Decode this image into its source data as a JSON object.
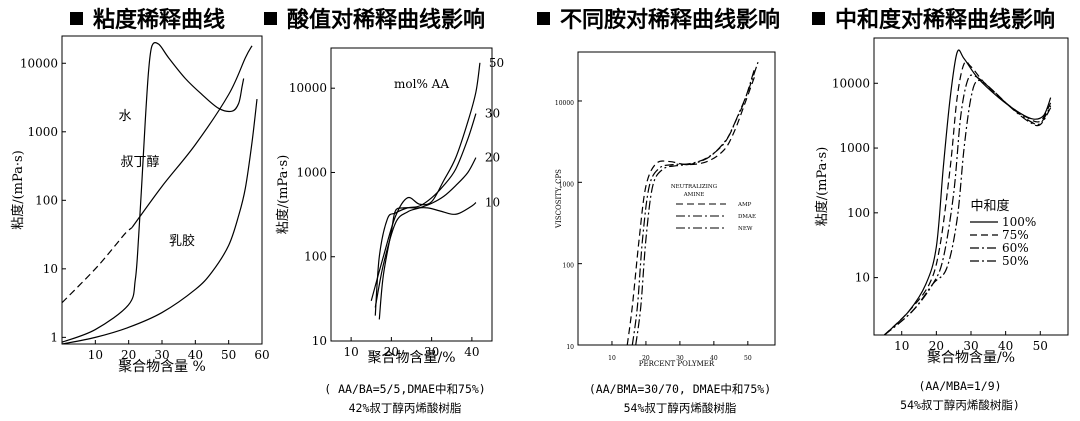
{
  "titles": [
    "粘度稀释曲线",
    "酸值对稀释曲线影响",
    "不同胺对稀释曲线影响",
    "中和度对稀释曲线影响"
  ],
  "captions": {
    "p2_line1": "( AA/BA=5/5,DMAE中和75%)",
    "p2_line2": "42%叔丁醇丙烯酸树脂",
    "p3_line1": "(AA/BMA=30/70, DMAE中和75%)",
    "p3_line2": "54%叔丁醇丙烯酸树脂",
    "p4_line1": "(AA/MBA=1/9)",
    "p4_line2": "54%叔丁醇丙烯酸树脂)"
  },
  "chart_data": [
    {
      "type": "line",
      "title": "粘度稀释曲线",
      "xlabel": "聚合物含量 %",
      "ylabel": "粘度/(mPa·s)",
      "xlim": [
        0,
        60
      ],
      "ylim": [
        0.8,
        25000
      ],
      "yscale": "log",
      "xticks": [
        10,
        20,
        30,
        40,
        50,
        60
      ],
      "yticks": [
        1,
        10,
        100,
        1000,
        10000
      ],
      "series": [
        {
          "name": "水",
          "dash": "solid",
          "points": [
            [
              0,
              0.85
            ],
            [
              10,
              1.3
            ],
            [
              20,
              3.0
            ],
            [
              22,
              7
            ],
            [
              23,
              30
            ],
            [
              24,
              200
            ],
            [
              25,
              1500
            ],
            [
              26,
              8000
            ],
            [
              27,
              18000
            ],
            [
              29,
              19000
            ],
            [
              32,
              12000
            ],
            [
              37,
              6000
            ],
            [
              42,
              3500
            ],
            [
              47,
              2200
            ],
            [
              51,
              2000
            ],
            [
              53,
              2600
            ],
            [
              54,
              4500
            ],
            [
              54.5,
              6000
            ]
          ]
        },
        {
          "name": "叔丁醇",
          "dash": "dashed",
          "points": [
            [
              0,
              3.2
            ],
            [
              10,
              10
            ],
            [
              16,
              22
            ],
            [
              19,
              33
            ],
            [
              21,
              40
            ]
          ]
        },
        {
          "name": "叔丁醇",
          "dash": "solid",
          "points": [
            [
              21,
              40
            ],
            [
              30,
              160
            ],
            [
              40,
              650
            ],
            [
              50,
              3500
            ],
            [
              55,
              12000
            ],
            [
              57,
              18000
            ]
          ]
        },
        {
          "name": "乳胶",
          "dash": "solid",
          "points": [
            [
              0,
              0.8
            ],
            [
              10,
              1.0
            ],
            [
              20,
              1.4
            ],
            [
              30,
              2.3
            ],
            [
              40,
              5
            ],
            [
              45,
              9
            ],
            [
              50,
              22
            ],
            [
              53,
              60
            ],
            [
              55,
              150
            ],
            [
              57,
              700
            ],
            [
              58.5,
              3000
            ]
          ]
        }
      ]
    },
    {
      "type": "line",
      "title": "酸值对稀释曲线影响",
      "xlabel": "聚合物含量/%",
      "ylabel": "粘度/(mPa·s)",
      "legend_title": "mol% AA",
      "xlim": [
        5,
        45
      ],
      "ylim": [
        10,
        30000
      ],
      "yscale": "log",
      "xticks": [
        10,
        20,
        30,
        40
      ],
      "yticks": [
        10,
        100,
        1000,
        10000
      ],
      "series": [
        {
          "name": "50",
          "points": [
            [
              15,
              30
            ],
            [
              18,
              100
            ],
            [
              21,
              300
            ],
            [
              24,
              500
            ],
            [
              27,
              420
            ],
            [
              30,
              450
            ],
            [
              33,
              800
            ],
            [
              36,
              1500
            ],
            [
              39,
              4000
            ],
            [
              41,
              9000
            ],
            [
              42,
              20000
            ]
          ]
        },
        {
          "name": "30",
          "points": [
            [
              16,
              20
            ],
            [
              17,
              100
            ],
            [
              19,
              280
            ],
            [
              21,
              330
            ],
            [
              24,
              380
            ],
            [
              27,
              400
            ],
            [
              30,
              500
            ],
            [
              33,
              700
            ],
            [
              36,
              1100
            ],
            [
              39,
              2500
            ],
            [
              41,
              5000
            ]
          ]
        },
        {
          "name": "20",
          "points": [
            [
              16,
              25
            ],
            [
              18,
              80
            ],
            [
              21,
              250
            ],
            [
              24,
              340
            ],
            [
              27,
              380
            ],
            [
              30,
              430
            ],
            [
              33,
              520
            ],
            [
              36,
              700
            ],
            [
              39,
              1000
            ],
            [
              41,
              1500
            ]
          ]
        },
        {
          "name": "10",
          "points": [
            [
              17,
              18
            ],
            [
              18,
              60
            ],
            [
              20,
              200
            ],
            [
              21,
              350
            ],
            [
              23,
              380
            ],
            [
              26,
              380
            ],
            [
              29,
              380
            ],
            [
              32,
              350
            ],
            [
              35,
              320
            ],
            [
              37,
              330
            ],
            [
              40,
              400
            ],
            [
              41,
              440
            ]
          ]
        }
      ]
    },
    {
      "type": "line",
      "title": "不同胺对稀释曲线影响",
      "xlabel": "PERCENT POLYMER",
      "ylabel": "VISCOSITY, CPS",
      "legend_title": "NEUTRALIZING AMINE",
      "xlim": [
        0,
        58
      ],
      "ylim": [
        10,
        40000
      ],
      "yscale": "log",
      "xticks": [
        10,
        20,
        30,
        40,
        50
      ],
      "yticks": [
        10,
        100,
        1000,
        10000
      ],
      "series": [
        {
          "name": "AMP",
          "dash": "dashed",
          "points": [
            [
              14.5,
              10
            ],
            [
              16,
              30
            ],
            [
              18,
              200
            ],
            [
              20,
              900
            ],
            [
              23,
              1700
            ],
            [
              27,
              1800
            ],
            [
              32,
              1650
            ],
            [
              38,
              1800
            ],
            [
              43,
              2500
            ],
            [
              46,
              4200
            ],
            [
              49,
              9000
            ],
            [
              52,
              20000
            ]
          ]
        },
        {
          "name": "DMAE",
          "dash": "dashdot",
          "points": [
            [
              16,
              10
            ],
            [
              17.5,
              30
            ],
            [
              19,
              200
            ],
            [
              21,
              900
            ],
            [
              24,
              1500
            ],
            [
              28,
              1650
            ],
            [
              33,
              1700
            ],
            [
              38,
              2000
            ],
            [
              43,
              3000
            ],
            [
              46,
              5200
            ],
            [
              49,
              10000
            ],
            [
              52,
              25000
            ]
          ]
        },
        {
          "name": "NEW",
          "dash": "dashdot",
          "points": [
            [
              17,
              10
            ],
            [
              18.5,
              30
            ],
            [
              20,
              200
            ],
            [
              22,
              900
            ],
            [
              25,
              1450
            ],
            [
              29,
              1600
            ],
            [
              34,
              1700
            ],
            [
              39,
              2100
            ],
            [
              44,
              3500
            ],
            [
              47,
              6500
            ],
            [
              50,
              13000
            ],
            [
              53,
              30000
            ]
          ]
        }
      ]
    },
    {
      "type": "line",
      "title": "中和度对稀释曲线影响",
      "xlabel": "聚合物含量/%",
      "ylabel": "粘度/(mPa·s)",
      "legend_title": "中和度",
      "xlim": [
        2,
        58
      ],
      "ylim": [
        1.3,
        50000
      ],
      "yscale": "log",
      "xticks": [
        10,
        20,
        30,
        40,
        50
      ],
      "yticks": [
        10,
        100,
        1000,
        10000
      ],
      "series": [
        {
          "name": "100%",
          "dash": "solid",
          "points": [
            [
              5,
              1.3
            ],
            [
              12,
              3
            ],
            [
              17,
              8
            ],
            [
              20,
              30
            ],
            [
              22,
              500
            ],
            [
              24,
              6000
            ],
            [
              26,
              30000
            ],
            [
              28,
              24000
            ],
            [
              32,
              12000
            ],
            [
              38,
              6000
            ],
            [
              44,
              3500
            ],
            [
              48,
              2800
            ],
            [
              51,
              3200
            ],
            [
              53,
              6000
            ]
          ]
        },
        {
          "name": "75%",
          "dash": "dashed",
          "points": [
            [
              5,
              1.3
            ],
            [
              12,
              3
            ],
            [
              18,
              8
            ],
            [
              21,
              30
            ],
            [
              24,
              500
            ],
            [
              26,
              6000
            ],
            [
              28,
              20000
            ],
            [
              30,
              18000
            ],
            [
              34,
              10000
            ],
            [
              40,
              5000
            ],
            [
              46,
              3000
            ],
            [
              50,
              2600
            ],
            [
              53,
              5000
            ]
          ]
        },
        {
          "name": "60%",
          "dash": "dashdot",
          "points": [
            [
              5,
              1.3
            ],
            [
              13,
              3
            ],
            [
              19,
              8
            ],
            [
              22,
              20
            ],
            [
              25,
              200
            ],
            [
              27,
              3000
            ],
            [
              29,
              11000
            ],
            [
              31,
              13000
            ],
            [
              35,
              9000
            ],
            [
              41,
              4500
            ],
            [
              47,
              2600
            ],
            [
              50,
              2400
            ],
            [
              53,
              4500
            ]
          ]
        },
        {
          "name": "50%",
          "dash": "dashdot",
          "points": [
            [
              5,
              1.3
            ],
            [
              13,
              3
            ],
            [
              19,
              8
            ],
            [
              23,
              14
            ],
            [
              26,
              80
            ],
            [
              28,
              1000
            ],
            [
              30,
              6000
            ],
            [
              32,
              11000
            ],
            [
              36,
              8000
            ],
            [
              42,
              4000
            ],
            [
              47,
              2500
            ],
            [
              50,
              2300
            ],
            [
              53,
              4200
            ]
          ]
        }
      ]
    }
  ]
}
